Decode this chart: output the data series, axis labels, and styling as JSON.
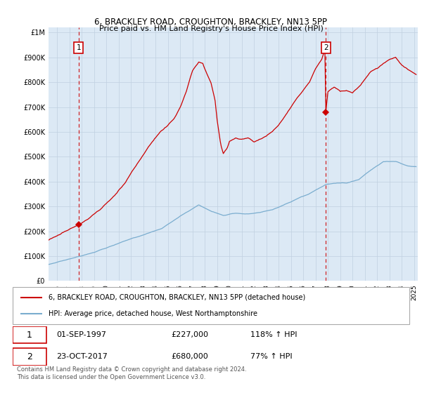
{
  "title": "6, BRACKLEY ROAD, CROUGHTON, BRACKLEY, NN13 5PP",
  "subtitle": "Price paid vs. HM Land Registry's House Price Index (HPI)",
  "ytick_values": [
    0,
    100000,
    200000,
    300000,
    400000,
    500000,
    600000,
    700000,
    800000,
    900000,
    1000000
  ],
  "ylim": [
    0,
    1020000
  ],
  "xlim_start": 1995.3,
  "xlim_end": 2025.3,
  "red_color": "#cc0000",
  "blue_color": "#7aadcf",
  "chart_bg": "#dce9f5",
  "sale1_year": 1997.75,
  "sale1_price": 227000,
  "sale2_year": 2017.83,
  "sale2_price": 680000,
  "sale1_label": "1",
  "sale2_label": "2",
  "legend_red_label": "6, BRACKLEY ROAD, CROUGHTON, BRACKLEY, NN13 5PP (detached house)",
  "legend_blue_label": "HPI: Average price, detached house, West Northamptonshire",
  "table_rows": [
    {
      "num": "1",
      "date": "01-SEP-1997",
      "price": "£227,000",
      "hpi": "118% ↑ HPI"
    },
    {
      "num": "2",
      "date": "23-OCT-2017",
      "price": "£680,000",
      "hpi": "77% ↑ HPI"
    }
  ],
  "footer": "Contains HM Land Registry data © Crown copyright and database right 2024.\nThis data is licensed under the Open Government Licence v3.0.",
  "background_color": "#ffffff",
  "grid_color": "#c0d0e0"
}
